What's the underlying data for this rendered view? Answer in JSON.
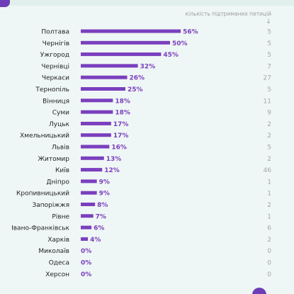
{
  "chart_data": {
    "type": "bar",
    "orientation": "horizontal",
    "title": "",
    "secondary_column_header": "кількість підтриманих петицій",
    "secondary_column_arrow": "↓",
    "xlabel": "",
    "ylabel": "",
    "xlim": [
      0,
      100
    ],
    "grid": false,
    "legend": "none",
    "value_suffix": "%",
    "categories": [
      "Полтава",
      "Чернігів",
      "Ужгород",
      "Чернівці",
      "Черкаси",
      "Тернопіль",
      "Вінниця",
      "Суми",
      "Луцьк",
      "Хмельницький",
      "Львів",
      "Житомир",
      "Київ",
      "Дніпро",
      "Кропивницький",
      "Запоріжжя",
      "Рівне",
      "Івано-Франківськ",
      "Харків",
      "Миколаїв",
      "Одеса",
      "Херсон"
    ],
    "series": [
      {
        "values": [
          56,
          50,
          45,
          32,
          26,
          25,
          18,
          18,
          17,
          17,
          16,
          13,
          12,
          9,
          9,
          8,
          7,
          6,
          4,
          0,
          0,
          0
        ]
      }
    ],
    "supported_petitions": [
      5,
      5,
      5,
      7,
      27,
      5,
      11,
      9,
      2,
      2,
      5,
      2,
      46,
      1,
      1,
      2,
      1,
      6,
      2,
      0,
      0,
      0
    ]
  },
  "colors": {
    "bar": "#7b3fbe",
    "value_label": "#7b3fbe",
    "category_label": "#222222",
    "count_label": "#a6a6a6",
    "header": "#9c9c9c",
    "background": "#eef7f5",
    "accent": "#6e3db7"
  },
  "icons": {
    "corner_logo": "brand-corner-icon",
    "corner_circle": "brand-circle-icon"
  }
}
